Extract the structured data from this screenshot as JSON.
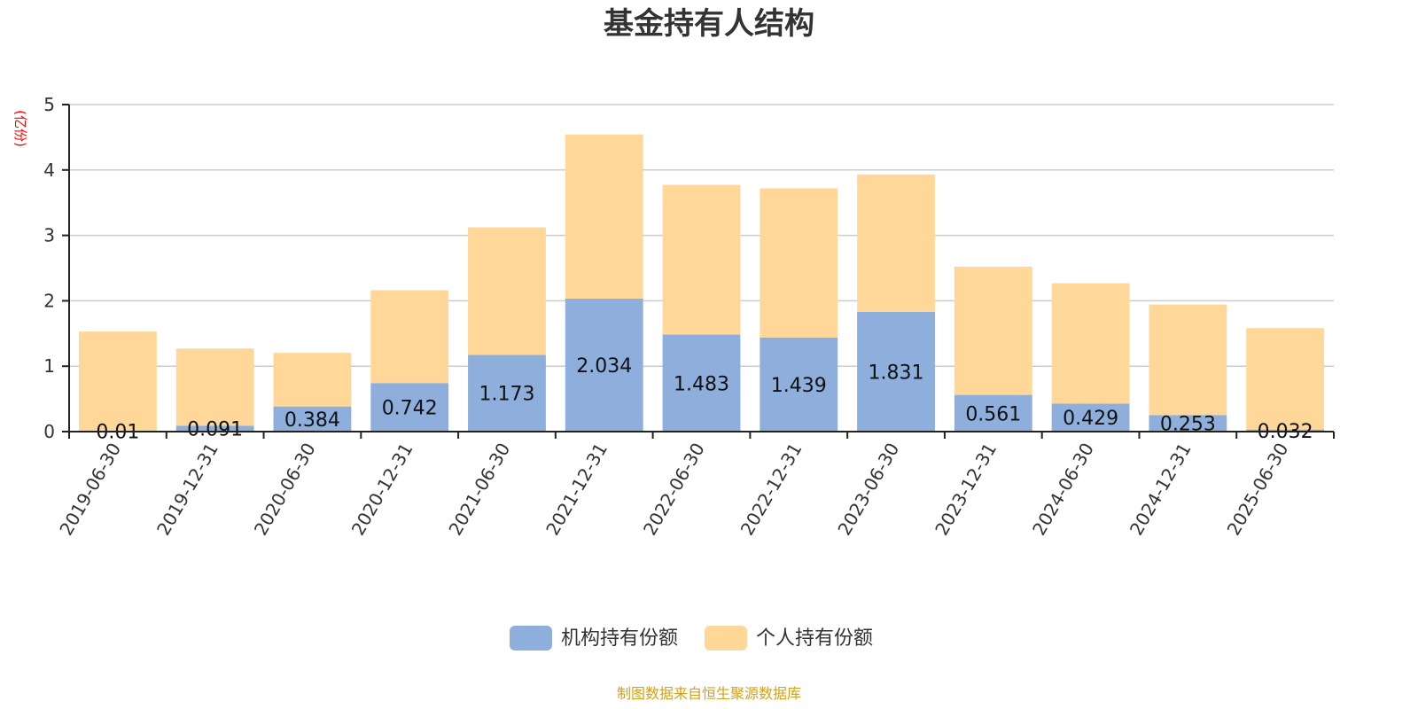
{
  "chart_data": {
    "type": "bar",
    "stacked": true,
    "title": "基金持有人结构",
    "y_unit": "(亿份)",
    "ylim": [
      0,
      5
    ],
    "yticks": [
      0,
      1,
      2,
      3,
      4,
      5
    ],
    "grid": true,
    "legend_position": "bottom",
    "categories": [
      "2019-06-30",
      "2019-12-31",
      "2020-06-30",
      "2020-12-31",
      "2021-06-30",
      "2021-12-31",
      "2022-06-30",
      "2022-12-31",
      "2023-06-30",
      "2023-12-31",
      "2024-06-30",
      "2024-12-31",
      "2025-06-30"
    ],
    "series": [
      {
        "name": "机构持有份额",
        "color": "#8eaedb",
        "values": [
          0.01,
          0.091,
          0.384,
          0.742,
          1.173,
          2.034,
          1.483,
          1.439,
          1.831,
          0.561,
          0.429,
          0.253,
          0.032
        ],
        "labels": [
          "0.01",
          "0.091",
          "0.384",
          "0.742",
          "1.173",
          "2.034",
          "1.483",
          "1.439",
          "1.831",
          "0.561",
          "0.429",
          "0.253",
          "0.032"
        ]
      },
      {
        "name": "个人持有份额",
        "color": "#ffd899",
        "values": [
          1.52,
          1.18,
          0.82,
          1.42,
          1.95,
          2.51,
          2.29,
          2.28,
          2.1,
          1.96,
          1.84,
          1.69,
          1.55
        ]
      }
    ],
    "source": "制图数据来自恒生聚源数据库"
  }
}
